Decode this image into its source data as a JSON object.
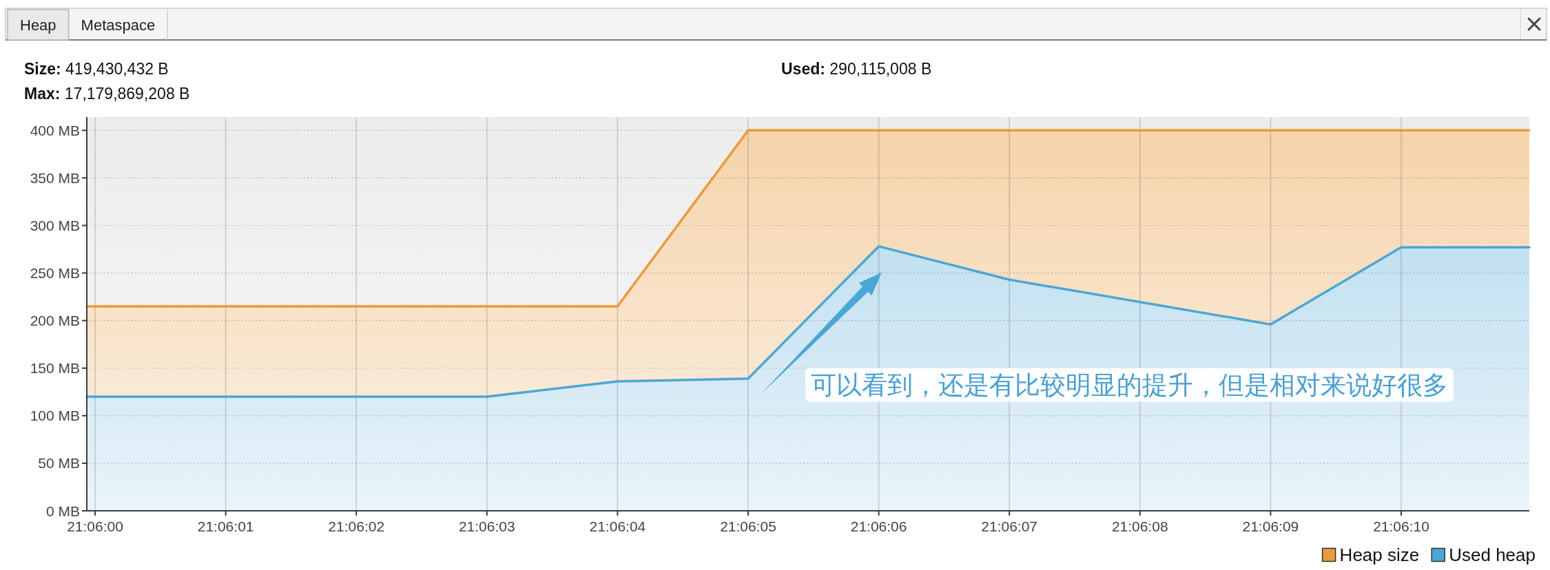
{
  "chart_data": {
    "type": "area",
    "title": "Heap",
    "annotations": [
      "Metaspace",
      "Size: 419,430,432 B",
      "Max: 17,179,869,208 B",
      "Used: 290,115,008 B",
      "可以看到，还是有比较明显的提升，但是相对来说好很多"
    ],
    "xlim": [
      21.0999824,
      21.1030503
    ],
    "xticks": [
      {
        "value": 21.1,
        "label": "21:06:00"
      },
      {
        "value": 21.1002778,
        "label": "21:06:01"
      },
      {
        "value": 21.1005556,
        "label": "21:06:02"
      },
      {
        "value": 21.1008333,
        "label": "21:06:03"
      },
      {
        "value": 21.1011111,
        "label": "21:06:04"
      },
      {
        "value": 21.1013889,
        "label": "21:06:05"
      },
      {
        "value": 21.1016667,
        "label": "21:06:06"
      },
      {
        "value": 21.1019444,
        "label": "21:06:07"
      },
      {
        "value": 21.1022222,
        "label": "21:06:08"
      },
      {
        "value": 21.1025,
        "label": "21:06:09"
      },
      {
        "value": 21.1027778,
        "label": "21:06:10"
      }
    ],
    "ylim": [
      0,
      414
    ],
    "yticks": [
      {
        "value": 0,
        "label": "0 MB"
      },
      {
        "value": 50,
        "label": "50 MB"
      },
      {
        "value": 100,
        "label": "100 MB"
      },
      {
        "value": 150,
        "label": "150 MB"
      },
      {
        "value": 200,
        "label": "200 MB"
      },
      {
        "value": 250,
        "label": "250 MB"
      },
      {
        "value": 300,
        "label": "300 MB"
      },
      {
        "value": 350,
        "label": "350 MB"
      },
      {
        "value": 400,
        "label": "400 MB"
      }
    ],
    "grid": true,
    "legend": "bottom right",
    "series": [
      {
        "name": "Heap size",
        "color": "#e89b3e",
        "x": [
          21.0999824,
          21.1011111,
          21.1013889,
          21.1030503
        ],
        "values": [
          215,
          215,
          400,
          400
        ]
      },
      {
        "name": "Used heap",
        "color": "#4ca6d5",
        "x": [
          21.0999824,
          21.1008333,
          21.1011111,
          21.1013889,
          21.1016667,
          21.1019444,
          21.1025,
          21.1027778,
          21.1030503
        ],
        "values": [
          120,
          120,
          136,
          139,
          278,
          243,
          196,
          277,
          277
        ]
      }
    ]
  }
}
